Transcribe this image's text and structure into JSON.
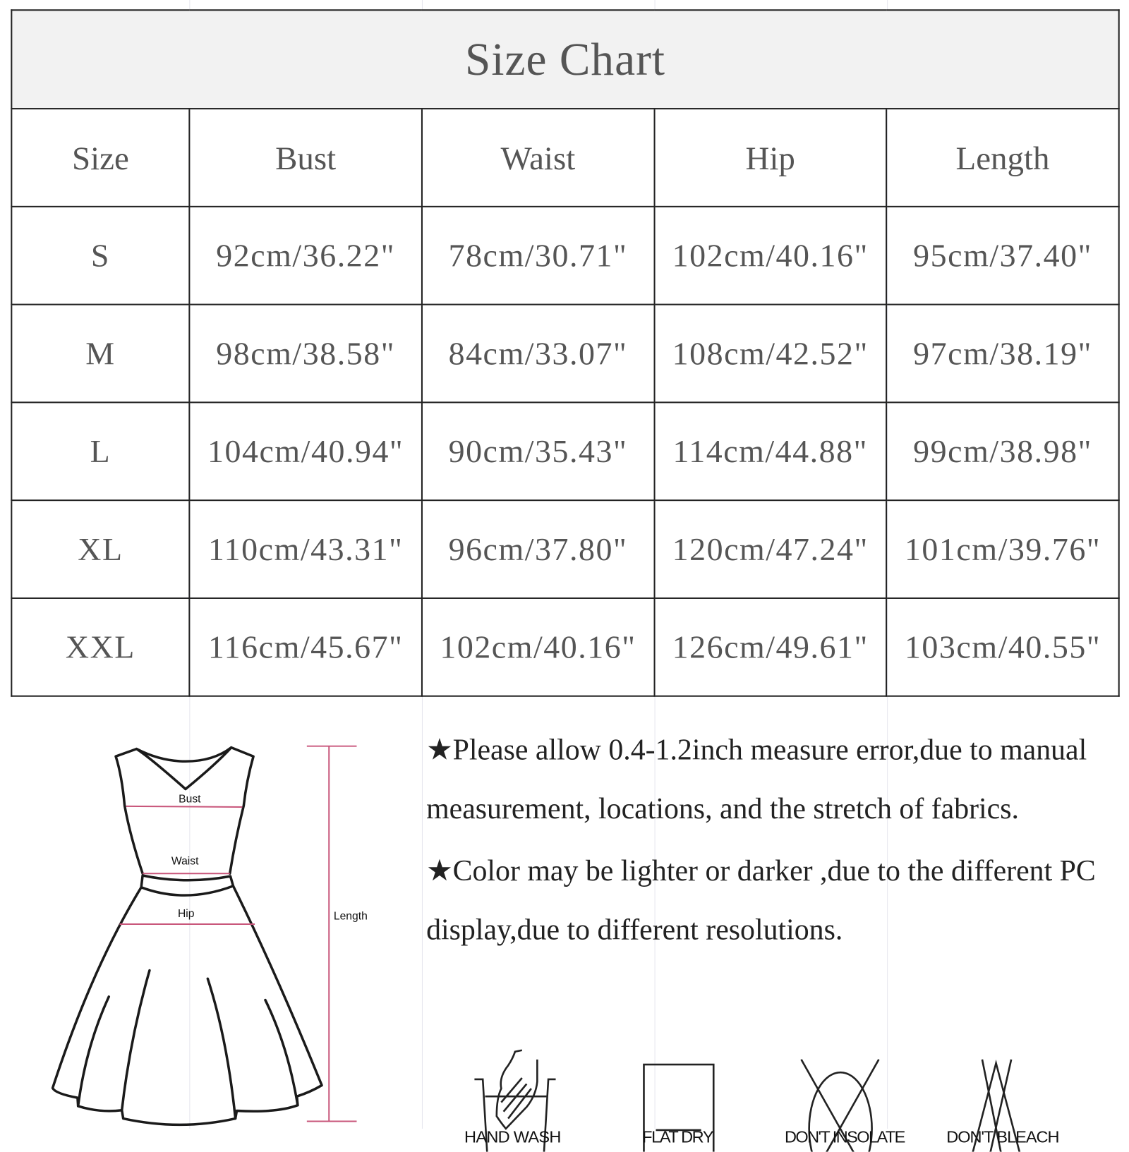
{
  "title": "Size Chart",
  "columns": [
    "Size",
    "Bust",
    "Waist",
    "Hip",
    "Length"
  ],
  "rows": [
    [
      "S",
      "92cm/36.22\"",
      "78cm/30.71\"",
      "102cm/40.16\"",
      "95cm/37.40\""
    ],
    [
      "M",
      "98cm/38.58\"",
      "84cm/33.07\"",
      "108cm/42.52\"",
      "97cm/38.19\""
    ],
    [
      "L",
      "104cm/40.94\"",
      "90cm/35.43\"",
      "114cm/44.88\"",
      "99cm/38.98\""
    ],
    [
      "XL",
      "110cm/43.31\"",
      "96cm/37.80\"",
      "120cm/47.24\"",
      "101cm/39.76\""
    ],
    [
      "XXL",
      "116cm/45.67\"",
      "102cm/40.16\"",
      "126cm/49.61\"",
      "103cm/40.55\""
    ]
  ],
  "diagram": {
    "labels": {
      "bust": "Bust",
      "waist": "Waist",
      "hip": "Hip",
      "length": "Length"
    },
    "measure_color": "#c8557a"
  },
  "notes": [
    "★Please allow 0.4-1.2inch measure error,due to manual measurement, locations, and the stretch of fabrics.",
    "★Color may be lighter or darker ,due to the different PC display,due to different resolutions."
  ],
  "care": [
    {
      "icon": "hand-wash-icon",
      "label": "HAND WASH"
    },
    {
      "icon": "flat-dry-icon",
      "label": "FLAT  DRY"
    },
    {
      "icon": "dont-insolate-icon",
      "label": "DON'T INSOLATE"
    },
    {
      "icon": "dont-bleach-icon",
      "label": "DON'T BLEACH"
    }
  ]
}
